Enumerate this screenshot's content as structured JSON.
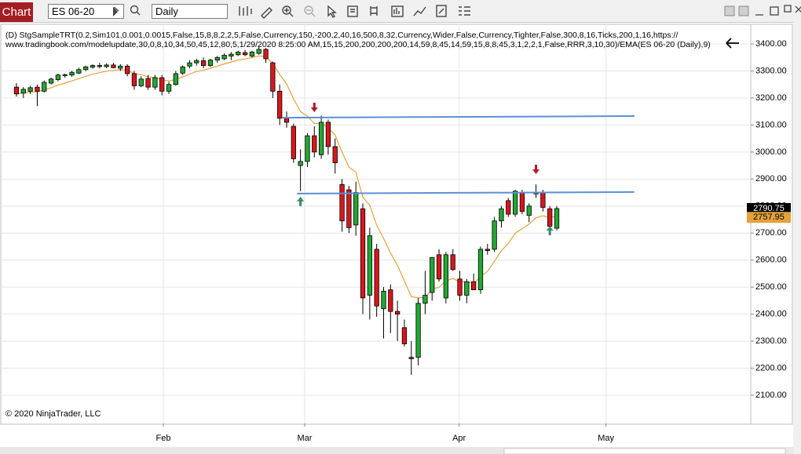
{
  "toolbar": {
    "tab": "Chart",
    "instrument": "ES 06-20",
    "interval": "Daily"
  },
  "chart_data": {
    "type": "candlestick",
    "indicator_text": [
      "(D) StgSampleTRT(0.2,Sim101,0.001,0.0015,False,15,8,8,2,2,5,False,Currency,150,-200,2,40,16,500,8,32,Currency,Wider,False,Currency,Tighter,False,300,8,16,Ticks,200,1,16,https://",
      "www.tradingbook.com/modelupdate,30,0,8,10,34,50,45,12,80,5,1/29/2020 8:25:00 AM,15,15,200,200,200,200,14,59,8,45,14,59,15,8,8,45,3,1,2,2,1,False,RRR,3,10,30)/EMA(ES 06-20 (Daily),9)"
    ],
    "copyright": "© 2020 NinjaTrader, LLC",
    "x": [
      0,
      1,
      2,
      3,
      4,
      5,
      6,
      7,
      8,
      9,
      10,
      11,
      12,
      13,
      14,
      15,
      16,
      17,
      18,
      19,
      20,
      21,
      22,
      23,
      24,
      25,
      26,
      27,
      28,
      29,
      30,
      31,
      32,
      33,
      34,
      35,
      36,
      37,
      38,
      39,
      40,
      41,
      42,
      43,
      44,
      45,
      46,
      47,
      48,
      49,
      50,
      51,
      52,
      53,
      54,
      55,
      56,
      57,
      58,
      59,
      60,
      61,
      62,
      63,
      64,
      65,
      66,
      67,
      68,
      69,
      70,
      71,
      72,
      73,
      74,
      75,
      76,
      77,
      78
    ],
    "open": [
      3240,
      3218,
      3225,
      3240,
      3225,
      3255,
      3268,
      3283,
      3285,
      3292,
      3305,
      3314,
      3320,
      3316,
      3322,
      3310,
      3318,
      3290,
      3245,
      3272,
      3240,
      3275,
      3225,
      3250,
      3292,
      3318,
      3330,
      3338,
      3320,
      3340,
      3345,
      3355,
      3360,
      3368,
      3355,
      3365,
      3380,
      3330,
      3225,
      3125,
      3095,
      2950,
      2965,
      3060,
      2990,
      3110,
      3020,
      2880,
      2860,
      2730,
      2790,
      2470,
      2640,
      2420,
      2490,
      2410,
      2350,
      2240,
      2240,
      2440,
      2480,
      2620,
      2460,
      2620,
      2530,
      2470,
      2520,
      2490,
      2640,
      2640,
      2745,
      2820,
      2770,
      2850,
      2765,
      2845,
      2850,
      2790,
      2718
    ],
    "high": [
      3255,
      3240,
      3245,
      3250,
      3265,
      3275,
      3290,
      3290,
      3300,
      3312,
      3320,
      3325,
      3330,
      3328,
      3330,
      3325,
      3325,
      3300,
      3280,
      3285,
      3285,
      3285,
      3260,
      3300,
      3320,
      3340,
      3345,
      3350,
      3345,
      3355,
      3365,
      3370,
      3375,
      3378,
      3375,
      3390,
      3385,
      3335,
      3250,
      3150,
      3105,
      3010,
      3070,
      3095,
      3135,
      3120,
      3050,
      2900,
      2875,
      2890,
      2810,
      2720,
      2660,
      2500,
      2510,
      2450,
      2380,
      2300,
      2460,
      2560,
      2610,
      2640,
      2630,
      2640,
      2560,
      2530,
      2550,
      2650,
      2660,
      2760,
      2800,
      2830,
      2860,
      2860,
      2810,
      2880,
      2860,
      2800,
      2800
    ],
    "low": [
      3205,
      3200,
      3215,
      3170,
      3220,
      3250,
      3262,
      3275,
      3278,
      3288,
      3300,
      3308,
      3310,
      3310,
      3310,
      3300,
      3280,
      3230,
      3240,
      3230,
      3230,
      3210,
      3215,
      3245,
      3285,
      3310,
      3320,
      3310,
      3315,
      3330,
      3340,
      3340,
      3355,
      3355,
      3350,
      3360,
      3330,
      3200,
      3100,
      3090,
      2960,
      2855,
      2945,
      2980,
      2975,
      2990,
      2920,
      2705,
      2700,
      2690,
      2400,
      2380,
      2390,
      2310,
      2330,
      2300,
      2280,
      2175,
      2210,
      2400,
      2450,
      2520,
      2440,
      2560,
      2450,
      2440,
      2490,
      2475,
      2620,
      2630,
      2720,
      2760,
      2760,
      2770,
      2740,
      2830,
      2780,
      2710,
      2710
    ],
    "close": [
      3215,
      3232,
      3238,
      3225,
      3258,
      3270,
      3285,
      3286,
      3295,
      3305,
      3315,
      3320,
      3316,
      3322,
      3312,
      3318,
      3290,
      3245,
      3270,
      3240,
      3275,
      3225,
      3250,
      3290,
      3315,
      3330,
      3338,
      3320,
      3340,
      3350,
      3358,
      3362,
      3370,
      3360,
      3370,
      3380,
      3345,
      3225,
      3125,
      3110,
      2975,
      2965,
      3060,
      3000,
      3110,
      3020,
      2960,
      2745,
      2720,
      2850,
      2460,
      2690,
      2430,
      2485,
      2410,
      2400,
      2290,
      2235,
      2440,
      2470,
      2610,
      2530,
      2620,
      2565,
      2470,
      2520,
      2490,
      2640,
      2635,
      2745,
      2790,
      2770,
      2855,
      2780,
      2800,
      2850,
      2795,
      2725,
      2790.75
    ],
    "up_color": "#22a832",
    "down_color": "#d9161c",
    "indicator": {
      "name": "EMA",
      "period": 9,
      "color": "#e3a23b"
    },
    "lines": [
      {
        "x": [
          38.4,
          89.2
        ],
        "y": [
          3127,
          3133
        ],
        "color": "#5b8fd6"
      },
      {
        "x": [
          40.5,
          89.2
        ],
        "y": [
          2846,
          2852
        ],
        "color": "#5b8fd6"
      }
    ],
    "markers": [
      {
        "x": 43,
        "y": 3162,
        "direction": "down",
        "color": "#b3182b"
      },
      {
        "x": 75,
        "y": 2933,
        "direction": "down",
        "color": "#b3182b"
      },
      {
        "x": 41,
        "y": 2820,
        "direction": "up",
        "color": "#3f8a6a"
      },
      {
        "x": 77,
        "y": 2712,
        "direction": "up",
        "color": "#3f8a6a"
      }
    ],
    "last_price": 2790.75,
    "ema_last": 2757.95,
    "xlim": [
      -2.15,
      106
    ],
    "xticks": [
      {
        "value": 21.2,
        "label": "Feb"
      },
      {
        "value": 41.6,
        "label": "Mar"
      },
      {
        "value": 63.9,
        "label": "Apr"
      },
      {
        "value": 85.1,
        "label": "May"
      }
    ],
    "ylim": [
      1995.5,
      3461
    ],
    "yticks": [
      {
        "value": 2100,
        "label": "2100.00"
      },
      {
        "value": 2200,
        "label": "2200.00"
      },
      {
        "value": 2300,
        "label": "2300.00"
      },
      {
        "value": 2400,
        "label": "2400.00"
      },
      {
        "value": 2500,
        "label": "2500.00"
      },
      {
        "value": 2600,
        "label": "2600.00"
      },
      {
        "value": 2700,
        "label": "2700.00"
      },
      {
        "value": 2800,
        "label": "2800.00"
      },
      {
        "value": 2900,
        "label": "2900.00"
      },
      {
        "value": 3000,
        "label": "3000.00"
      },
      {
        "value": 3100,
        "label": "3100.00"
      },
      {
        "value": 3200,
        "label": "3200.00"
      },
      {
        "value": 3300,
        "label": "3300.00"
      },
      {
        "value": 3400,
        "label": "3400.00"
      }
    ],
    "grid": true
  }
}
